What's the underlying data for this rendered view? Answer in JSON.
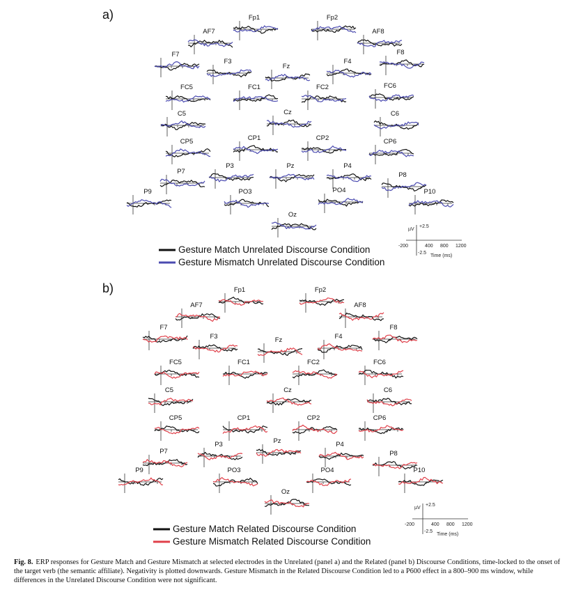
{
  "colors": {
    "match": "#111111",
    "mismatch_unrelated": "#4b4bb0",
    "mismatch_related": "#e0404a"
  },
  "panels": [
    {
      "label": "a)",
      "legend": [
        "Gesture Match Unrelated Discourse Condition",
        "Gesture Mismatch Unrelated Discourse Condition"
      ],
      "scale_bar": {
        "y_unit": "µV",
        "y_top": "+2.5",
        "y_bottom": "-2.5",
        "x_ticks": [
          "-200",
          "400",
          "800",
          "1200"
        ],
        "x_unit": "Time (ms)"
      },
      "electrodes": [
        "Fp1",
        "Fp2",
        "AF7",
        "AF8",
        "F7",
        "F8",
        "F3",
        "Fz",
        "F4",
        "FC5",
        "FC1",
        "FC2",
        "FC6",
        "C5",
        "Cz",
        "C6",
        "CP5",
        "CP1",
        "CP2",
        "CP6",
        "P7",
        "P3",
        "Pz",
        "P4",
        "P8",
        "P9",
        "PO3",
        "PO4",
        "P10",
        "Oz"
      ]
    },
    {
      "label": "b)",
      "legend": [
        "Gesture Match Related Discourse Condition",
        "Gesture Mismatch Related Discourse Condition"
      ],
      "scale_bar": {
        "y_unit": "µV",
        "y_top": "+2.5",
        "y_bottom": "-2.5",
        "x_ticks": [
          "-200",
          "400",
          "800",
          "1200"
        ],
        "x_unit": "Time (ms)"
      },
      "electrodes": [
        "Fp1",
        "Fp2",
        "AF7",
        "AF8",
        "F7",
        "F8",
        "F3",
        "Fz",
        "F4",
        "FC5",
        "FC1",
        "FC2",
        "FC6",
        "C5",
        "Cz",
        "C6",
        "CP1",
        "CP2",
        "CP5",
        "CP6",
        "P7",
        "P3",
        "Pz",
        "P4",
        "P8",
        "P9",
        "PO3",
        "PO4",
        "P10",
        "Oz"
      ]
    }
  ],
  "caption": {
    "label": "Fig. 8.",
    "text": "ERP responses for Gesture Match and Gesture Mismatch at selected electrodes in the Unrelated (panel a) and the Related (panel b) Discourse Conditions, time-locked to the onset of the target verb (the semantic affiliate). Negativity is plotted downwards. Gesture Mismatch in the Related Discourse Condition led to a P600 effect in a 800–900 ms window, while differences in the Unrelated Discourse Condition were not significant."
  }
}
